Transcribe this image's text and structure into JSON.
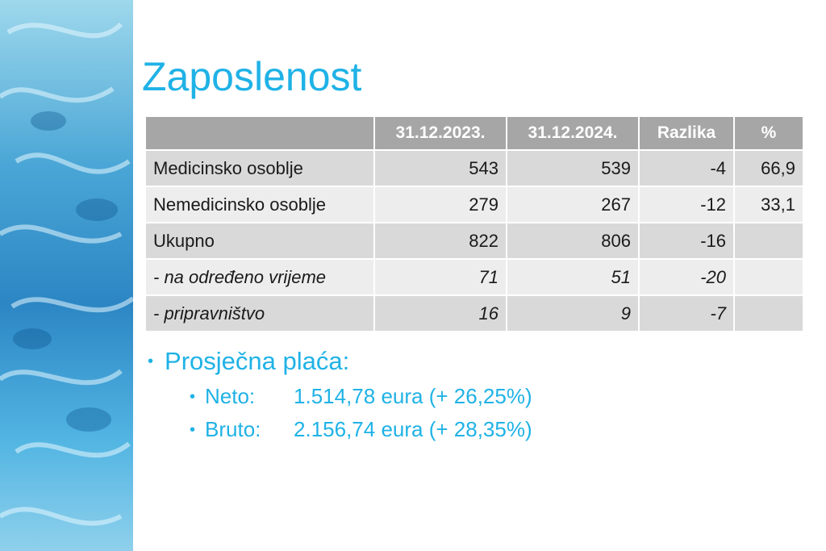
{
  "slide": {
    "title": "Zaposlenost"
  },
  "table": {
    "headers": [
      "",
      "31.12.2023.",
      "31.12.2024.",
      "Razlika",
      "%"
    ],
    "rows": [
      [
        "Medicinsko osoblje",
        "543",
        "539",
        "-4",
        "66,9"
      ],
      [
        "Nemedicinsko osoblje",
        "279",
        "267",
        "-12",
        "33,1"
      ],
      [
        "Ukupno",
        "822",
        "806",
        "-16",
        ""
      ],
      [
        "- na određeno vrijeme",
        "71",
        "51",
        "-20",
        ""
      ],
      [
        "- pripravništvo",
        "16",
        "9",
        "-7",
        ""
      ]
    ]
  },
  "bullets": {
    "heading": "Prosječna plaća:",
    "items": [
      {
        "label": "Neto:",
        "value": "1.514,78 eura (+ 26,25%)"
      },
      {
        "label": "Bruto:",
        "value": "2.156,74 eura (+ 28,35%)"
      }
    ]
  },
  "colors": {
    "accent": "#1fb2e6",
    "header_bg": "#a6a6a6",
    "row_dark": "#d9d9d9",
    "row_light": "#ededed"
  }
}
